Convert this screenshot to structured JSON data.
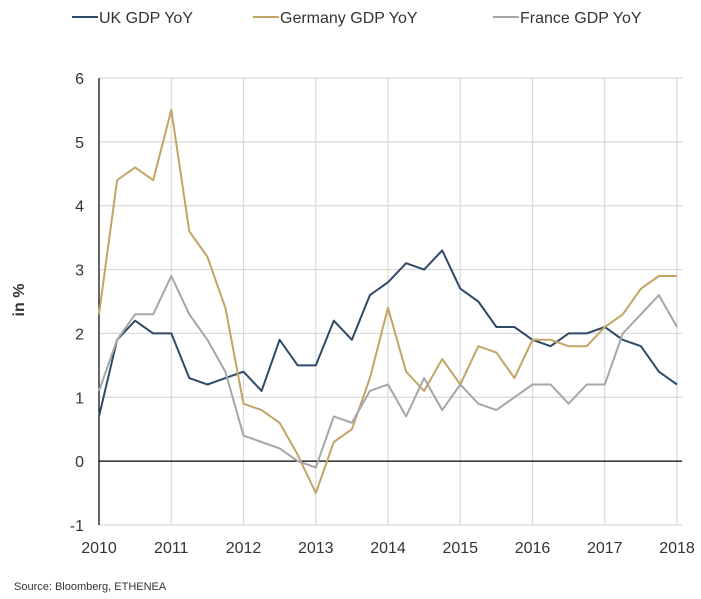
{
  "chart_data": {
    "type": "line",
    "title": "",
    "ylabel": "in %",
    "xlabel": "",
    "source": "Source: Bloomberg, ETHENEA",
    "x_ticks": [
      "2010",
      "2011",
      "2012",
      "2013",
      "2014",
      "2015",
      "2016",
      "2017",
      "2018"
    ],
    "y_ticks": [
      "-1",
      "0",
      "1",
      "2",
      "3",
      "4",
      "5",
      "6"
    ],
    "ylim": [
      -1,
      6
    ],
    "xlim": [
      2010,
      2018
    ],
    "frequency": "quarterly",
    "x_start": "2010 Q1",
    "x_end": "2018 Q1",
    "grid": true,
    "legend_position": "top",
    "series": [
      {
        "name": "UK GDP YoY",
        "color": "#2f4a68",
        "values": [
          0.7,
          1.9,
          2.2,
          2.0,
          2.0,
          1.3,
          1.2,
          1.3,
          1.4,
          1.1,
          1.9,
          1.5,
          1.5,
          2.2,
          1.9,
          2.6,
          2.8,
          3.1,
          3.0,
          3.3,
          2.7,
          2.5,
          2.1,
          2.1,
          1.9,
          1.8,
          2.0,
          2.0,
          2.1,
          1.9,
          1.8,
          1.4,
          1.2
        ]
      },
      {
        "name": "Germany GDP YoY",
        "color": "#c4a465",
        "values": [
          2.3,
          4.4,
          4.6,
          4.4,
          5.5,
          3.6,
          3.2,
          2.4,
          0.9,
          0.8,
          0.6,
          0.1,
          -0.5,
          0.3,
          0.5,
          1.3,
          2.4,
          1.4,
          1.1,
          1.6,
          1.2,
          1.8,
          1.7,
          1.3,
          1.9,
          1.9,
          1.8,
          1.8,
          2.1,
          2.3,
          2.7,
          2.9,
          2.9
        ]
      },
      {
        "name": "France GDP YoY",
        "color": "#a6a6a6",
        "values": [
          1.1,
          1.9,
          2.3,
          2.3,
          2.9,
          2.3,
          1.9,
          1.4,
          0.4,
          0.3,
          0.2,
          0.0,
          -0.1,
          0.7,
          0.6,
          1.1,
          1.2,
          0.7,
          1.3,
          0.8,
          1.2,
          0.9,
          0.8,
          1.0,
          1.2,
          1.2,
          0.9,
          1.2,
          1.2,
          2.0,
          2.3,
          2.6,
          2.1
        ]
      }
    ]
  }
}
